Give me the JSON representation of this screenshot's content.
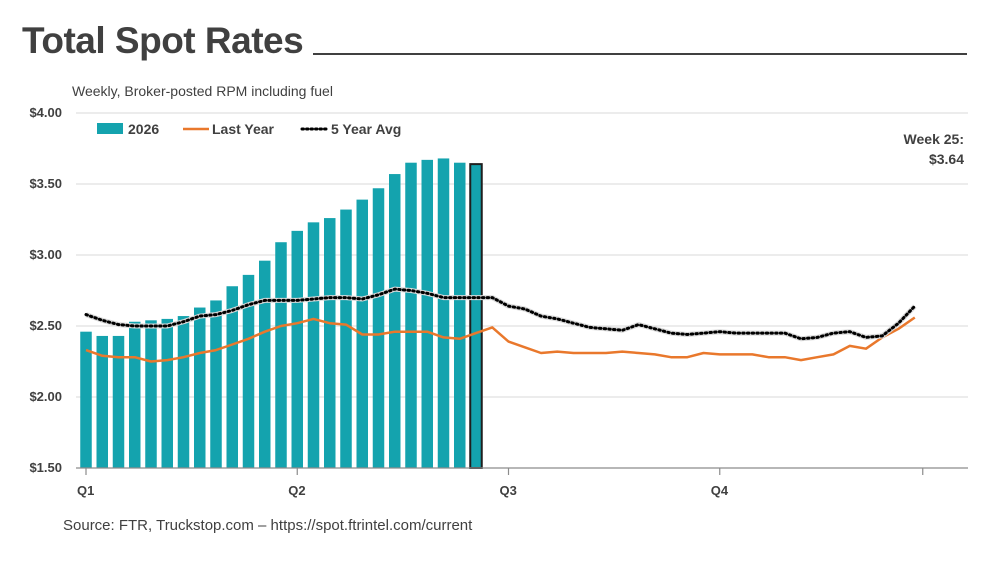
{
  "header": {
    "title": "Total Spot Rates",
    "subtitle": "Weekly, Broker-posted RPM including fuel"
  },
  "footer": {
    "source": "Source: FTR, Truckstop.com – https://spot.ftrintel.com/current"
  },
  "colors": {
    "bars": "#14A3AE",
    "last_year": "#E9782C",
    "five_year": "#000000",
    "highlight_border": "#1f1f1f",
    "grid": "#d9d9d9",
    "text": "#404040"
  },
  "chart_data": {
    "type": "bar",
    "title": "Total Spot Rates",
    "subtitle": "Weekly, Broker-posted RPM including fuel",
    "xlabel": "",
    "ylabel": "",
    "ylim": [
      1.5,
      4.0
    ],
    "y_ticks": [
      1.5,
      2.0,
      2.5,
      3.0,
      3.5,
      4.0
    ],
    "y_tick_labels": [
      "$1.50",
      "$2.00",
      "$2.50",
      "$3.00",
      "$3.50",
      "$4.00"
    ],
    "x_range_weeks": [
      1,
      52
    ],
    "quarter_labels": [
      {
        "label": "Q1",
        "week": 1
      },
      {
        "label": "Q2",
        "week": 14
      },
      {
        "label": "Q3",
        "week": 27
      },
      {
        "label": "Q4",
        "week": 40
      }
    ],
    "grid": true,
    "legend_position": "top-left",
    "series": [
      {
        "name": "2026",
        "type": "bar",
        "weeks": [
          1,
          2,
          3,
          4,
          5,
          6,
          7,
          8,
          9,
          10,
          11,
          12,
          13,
          14,
          15,
          16,
          17,
          18,
          19,
          20,
          21,
          22,
          23,
          24,
          25
        ],
        "values": [
          2.46,
          2.43,
          2.43,
          2.53,
          2.54,
          2.55,
          2.57,
          2.63,
          2.68,
          2.78,
          2.86,
          2.96,
          3.09,
          3.17,
          3.23,
          3.26,
          3.32,
          3.39,
          3.47,
          3.57,
          3.65,
          3.67,
          3.68,
          3.65,
          3.64
        ]
      },
      {
        "name": "Last Year",
        "type": "line",
        "values": [
          2.33,
          2.29,
          2.28,
          2.28,
          2.25,
          2.26,
          2.28,
          2.31,
          2.33,
          2.37,
          2.41,
          2.46,
          2.5,
          2.52,
          2.55,
          2.52,
          2.51,
          2.44,
          2.44,
          2.46,
          2.46,
          2.46,
          2.42,
          2.41,
          2.45,
          2.49,
          2.39,
          2.35,
          2.31,
          2.32,
          2.31,
          2.31,
          2.31,
          2.32,
          2.31,
          2.3,
          2.28,
          2.28,
          2.31,
          2.3,
          2.3,
          2.3,
          2.28,
          2.28,
          2.26,
          2.28,
          2.3,
          2.36,
          2.34,
          2.42,
          2.48,
          2.56
        ]
      },
      {
        "name": "5 Year Avg",
        "type": "dotted-line",
        "values": [
          2.58,
          2.54,
          2.51,
          2.5,
          2.5,
          2.5,
          2.53,
          2.57,
          2.58,
          2.61,
          2.65,
          2.68,
          2.68,
          2.68,
          2.69,
          2.7,
          2.7,
          2.69,
          2.72,
          2.76,
          2.75,
          2.73,
          2.7,
          2.7,
          2.7,
          2.7,
          2.64,
          2.62,
          2.57,
          2.55,
          2.52,
          2.49,
          2.48,
          2.47,
          2.51,
          2.48,
          2.45,
          2.44,
          2.45,
          2.46,
          2.45,
          2.45,
          2.45,
          2.45,
          2.41,
          2.42,
          2.45,
          2.46,
          2.42,
          2.43,
          2.52,
          2.64
        ]
      }
    ],
    "highlight": {
      "week": 25,
      "label": "Week 25:",
      "value_label": "$3.64"
    }
  }
}
